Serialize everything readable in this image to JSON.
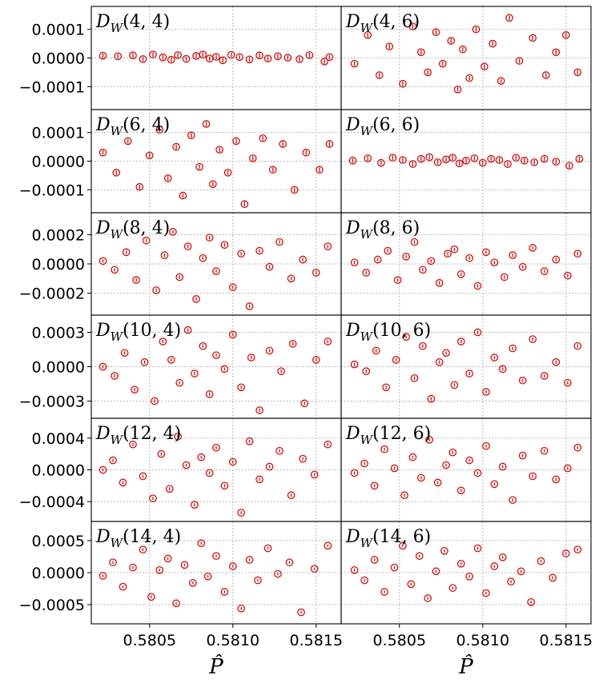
{
  "figure": {
    "x_axis_label": "P̂",
    "marker_color": "#cc1111",
    "grid": "dotted"
  },
  "chart_data": [
    {
      "type": "scatter",
      "title": "D_W(4,4)",
      "title_base": "D",
      "title_sub": "W",
      "title_args": "(4, 4)",
      "xlim": [
        0.58015,
        0.58165
      ],
      "ylim": [
        -0.00018,
        0.00018
      ],
      "yticks": [
        0.0001,
        0.0,
        -0.0001
      ],
      "ytick_labels": [
        "0.0001",
        "0.0000",
        "−0.0001"
      ],
      "xticks": [
        0.5805,
        0.581,
        0.5815
      ],
      "xtick_labels": [
        "",
        "",
        ""
      ],
      "amplitude": 8e-06,
      "x": [
        0.58022,
        0.58031,
        0.5804,
        0.58046,
        0.58052,
        0.58058,
        0.58063,
        0.58067,
        0.58072,
        0.58078,
        0.58082,
        0.58086,
        0.5809,
        0.58094,
        0.58099,
        0.58104,
        0.5811,
        0.58116,
        0.58121,
        0.58127,
        0.58133,
        0.5814,
        0.58146,
        0.58155,
        0.58158
      ],
      "y": [
        8e-06,
        6e-06,
        9e-06,
        -4e-06,
        1.2e-05,
        2e-06,
        -6e-06,
        1e-05,
        -3e-06,
        7e-06,
        1.2e-05,
        -2e-06,
        4e-06,
        -8e-06,
        1.1e-05,
        3e-06,
        -5e-06,
        9e-06,
        -2e-06,
        6e-06,
        1e-06,
        -4e-06,
        1e-05,
        -1.2e-05,
        3e-06
      ]
    },
    {
      "type": "scatter",
      "title": "D_W(4,6)",
      "title_base": "D",
      "title_sub": "W",
      "title_args": "(4, 6)",
      "xlim": [
        0.58015,
        0.58165
      ],
      "ylim": [
        -0.00018,
        0.00018
      ],
      "yticks": [
        0.0001,
        0.0,
        -0.0001
      ],
      "ytick_labels": [
        "",
        "",
        ""
      ],
      "xticks": [
        0.5805,
        0.581,
        0.5815
      ],
      "xtick_labels": [
        "",
        "",
        ""
      ],
      "amplitude": 8e-06,
      "x": [
        0.58023,
        0.58031,
        0.58038,
        0.58044,
        0.58052,
        0.58058,
        0.58063,
        0.58067,
        0.58072,
        0.58076,
        0.58081,
        0.58085,
        0.58088,
        0.58092,
        0.58096,
        0.58101,
        0.58106,
        0.58111,
        0.58116,
        0.58122,
        0.5813,
        0.58138,
        0.58144,
        0.5815,
        0.58157
      ],
      "y": [
        -2e-05,
        8e-05,
        -6e-05,
        4e-05,
        -9e-05,
        0.00011,
        2e-05,
        -5e-05,
        9e-05,
        -2e-05,
        6e-05,
        -0.00011,
        3e-05,
        -7e-05,
        0.0001,
        -3e-05,
        5e-05,
        -8e-05,
        0.00014,
        -1e-05,
        7e-05,
        -6e-05,
        2e-05,
        8e-05,
        -5e-05
      ]
    },
    {
      "type": "scatter",
      "title": "D_W(6,4)",
      "title_base": "D",
      "title_sub": "W",
      "title_args": "(6, 4)",
      "xlim": [
        0.58015,
        0.58165
      ],
      "ylim": [
        -0.00018,
        0.00018
      ],
      "yticks": [
        0.0001,
        0.0,
        -0.0001
      ],
      "ytick_labels": [
        "0.0001",
        "0.0000",
        "−0.0001"
      ],
      "xticks": [
        0.5805,
        0.581,
        0.5815
      ],
      "xtick_labels": [
        "",
        "",
        ""
      ],
      "amplitude": 8e-06,
      "x": [
        0.58022,
        0.5803,
        0.58037,
        0.58044,
        0.5805,
        0.58056,
        0.58061,
        0.58066,
        0.5807,
        0.58075,
        0.5808,
        0.58084,
        0.58088,
        0.58092,
        0.58097,
        0.58102,
        0.58107,
        0.58112,
        0.58118,
        0.58124,
        0.5813,
        0.58137,
        0.58144,
        0.58152,
        0.58158
      ],
      "y": [
        3e-05,
        -4e-05,
        7e-05,
        -9e-05,
        2e-05,
        0.00011,
        -6e-05,
        5e-05,
        -0.00012,
        9e-05,
        -2e-05,
        0.00013,
        -8e-05,
        4e-05,
        -4e-05,
        7e-05,
        -0.00015,
        1e-05,
        8e-05,
        -3e-05,
        6e-05,
        -0.0001,
        3e-05,
        -3e-05,
        6e-05
      ]
    },
    {
      "type": "scatter",
      "title": "D_W(6,6)",
      "title_base": "D",
      "title_sub": "W",
      "title_args": "(6, 6)",
      "xlim": [
        0.58015,
        0.58165
      ],
      "ylim": [
        -0.00018,
        0.00018
      ],
      "yticks": [
        0.0001,
        0.0,
        -0.0001
      ],
      "ytick_labels": [
        "",
        "",
        ""
      ],
      "xticks": [
        0.5805,
        0.581,
        0.5815
      ],
      "xtick_labels": [
        "",
        "",
        ""
      ],
      "amplitude": 8e-06,
      "x": [
        0.58022,
        0.58031,
        0.58039,
        0.58046,
        0.58052,
        0.58058,
        0.58063,
        0.58068,
        0.58073,
        0.58078,
        0.58082,
        0.58086,
        0.5809,
        0.58095,
        0.581,
        0.58105,
        0.5811,
        0.58115,
        0.5812,
        0.58125,
        0.58131,
        0.58137,
        0.58144,
        0.58152,
        0.58158
      ],
      "y": [
        2e-06,
        1e-05,
        -6e-06,
        1.2e-05,
        4e-06,
        -1e-05,
        8e-06,
        1.4e-05,
        -4e-06,
        6e-06,
        1.2e-05,
        -8e-06,
        2e-06,
        1e-05,
        -6e-06,
        8e-06,
        4e-06,
        -1e-05,
        1.2e-05,
        2e-06,
        -4e-06,
        8e-06,
        -2e-06,
        -1.6e-05,
        8e-06
      ]
    },
    {
      "type": "scatter",
      "title": "D_W(8,4)",
      "title_base": "D",
      "title_sub": "W",
      "title_args": "(8, 4)",
      "xlim": [
        0.58015,
        0.58165
      ],
      "ylim": [
        -0.00035,
        0.00035
      ],
      "yticks": [
        0.0002,
        0.0,
        -0.0002
      ],
      "ytick_labels": [
        "0.0002",
        "0.0000",
        "−0.0002"
      ],
      "xticks": [
        0.5805,
        0.581,
        0.5815
      ],
      "xtick_labels": [
        "",
        "",
        ""
      ],
      "amplitude": 1.2e-05,
      "x": [
        0.58022,
        0.58029,
        0.58036,
        0.58042,
        0.58048,
        0.58054,
        0.58059,
        0.58064,
        0.58068,
        0.58073,
        0.58078,
        0.58082,
        0.58086,
        0.5809,
        0.58095,
        0.581,
        0.58105,
        0.5811,
        0.58116,
        0.58122,
        0.58128,
        0.58135,
        0.58142,
        0.5815,
        0.58157
      ],
      "y": [
        2e-05,
        -4e-05,
        8e-05,
        -0.00011,
        0.00016,
        -0.00018,
        6e-05,
        0.00022,
        -9e-05,
        0.00012,
        -0.00024,
        4e-05,
        0.00018,
        -5e-05,
        0.00013,
        -0.00016,
        7e-05,
        -0.00029,
        9e-05,
        -2e-05,
        0.00015,
        -0.0001,
        3e-05,
        -6e-05,
        0.00012
      ]
    },
    {
      "type": "scatter",
      "title": "D_W(8,6)",
      "title_base": "D",
      "title_sub": "W",
      "title_args": "(8, 6)",
      "xlim": [
        0.58015,
        0.58165
      ],
      "ylim": [
        -0.00035,
        0.00035
      ],
      "yticks": [
        0.0002,
        0.0,
        -0.0002
      ],
      "ytick_labels": [
        "",
        "",
        ""
      ],
      "xticks": [
        0.5805,
        0.581,
        0.5815
      ],
      "xtick_labels": [
        "",
        "",
        ""
      ],
      "amplitude": 1.2e-05,
      "x": [
        0.58023,
        0.5803,
        0.58037,
        0.58043,
        0.58049,
        0.58054,
        0.58059,
        0.58064,
        0.58069,
        0.58074,
        0.58079,
        0.58083,
        0.58087,
        0.58092,
        0.58097,
        0.58102,
        0.58107,
        0.58113,
        0.58118,
        0.58124,
        0.5813,
        0.58137,
        0.58144,
        0.58151,
        0.58157
      ],
      "y": [
        1e-05,
        -6e-05,
        3e-05,
        9e-05,
        -0.00011,
        5e-05,
        0.00015,
        -4e-05,
        2e-05,
        -0.00013,
        7e-05,
        0.0001,
        -7e-05,
        4e-05,
        -0.00015,
        8e-05,
        1e-05,
        -9e-05,
        6e-05,
        -2e-05,
        0.00011,
        -5e-05,
        3e-05,
        -8e-05,
        7e-05
      ]
    },
    {
      "type": "scatter",
      "title": "D_W(10,4)",
      "title_base": "D",
      "title_sub": "W",
      "title_args": "(10, 4)",
      "xlim": [
        0.58015,
        0.58165
      ],
      "ylim": [
        -0.00045,
        0.00045
      ],
      "yticks": [
        0.0003,
        0.0,
        -0.0003
      ],
      "ytick_labels": [
        "0.0003",
        "0.0000",
        "−0.0003"
      ],
      "xticks": [
        0.5805,
        0.581,
        0.5815
      ],
      "xtick_labels": [
        "",
        "",
        ""
      ],
      "amplitude": 1.5e-05,
      "x": [
        0.58022,
        0.58029,
        0.58035,
        0.58041,
        0.58047,
        0.58053,
        0.58058,
        0.58063,
        0.58068,
        0.58073,
        0.58077,
        0.58082,
        0.58086,
        0.5809,
        0.58095,
        0.581,
        0.58105,
        0.58111,
        0.58116,
        0.58122,
        0.58129,
        0.58136,
        0.58143,
        0.5815,
        0.58157
      ],
      "y": [
        0.0,
        -8e-05,
        0.00012,
        -0.0002,
        4e-05,
        -0.0003,
        0.00022,
        6e-05,
        -0.00014,
        0.00032,
        -6e-05,
        0.00018,
        -0.00024,
        0.0001,
        -2e-05,
        0.00028,
        -0.00018,
        8e-05,
        -0.00038,
        0.00014,
        -4e-05,
        0.0002,
        -0.00032,
        6e-05,
        0.00022
      ]
    },
    {
      "type": "scatter",
      "title": "D_W(10,6)",
      "title_base": "D",
      "title_sub": "W",
      "title_args": "(10, 6)",
      "xlim": [
        0.58015,
        0.58165
      ],
      "ylim": [
        -0.00045,
        0.00045
      ],
      "yticks": [
        0.0003,
        0.0,
        -0.0003
      ],
      "ytick_labels": [
        "",
        "",
        ""
      ],
      "xticks": [
        0.5805,
        0.581,
        0.5815
      ],
      "xtick_labels": [
        "",
        "",
        ""
      ],
      "amplitude": 1.5e-05,
      "x": [
        0.58023,
        0.5803,
        0.58036,
        0.58042,
        0.58048,
        0.58054,
        0.58059,
        0.58064,
        0.58069,
        0.58074,
        0.58078,
        0.58083,
        0.58087,
        0.58092,
        0.58097,
        0.58102,
        0.58107,
        0.58112,
        0.58118,
        0.58124,
        0.5813,
        0.58137,
        0.58144,
        0.58151,
        0.58157
      ],
      "y": [
        2e-05,
        -4e-05,
        0.00014,
        -0.00018,
        6e-05,
        0.00026,
        -0.0001,
        0.00018,
        -0.00028,
        4e-05,
        0.00012,
        -0.00016,
        0.00022,
        -6e-05,
        0.0003,
        -0.00022,
        8e-05,
        -2e-05,
        0.00016,
        -0.00012,
        0.00024,
        -8e-05,
        4e-05,
        -0.00014,
        0.00018
      ]
    },
    {
      "type": "scatter",
      "title": "D_W(12,4)",
      "title_base": "D",
      "title_sub": "W",
      "title_args": "(12, 4)",
      "xlim": [
        0.58015,
        0.58165
      ],
      "ylim": [
        -0.00065,
        0.00065
      ],
      "yticks": [
        0.0004,
        0.0,
        -0.0004
      ],
      "ytick_labels": [
        "0.0004",
        "0.0000",
        "−0.0004"
      ],
      "xticks": [
        0.5805,
        0.581,
        0.5815
      ],
      "xtick_labels": [
        "",
        "",
        ""
      ],
      "amplitude": 2e-05,
      "x": [
        0.58022,
        0.58028,
        0.58034,
        0.5804,
        0.58046,
        0.58052,
        0.58057,
        0.58062,
        0.58067,
        0.58072,
        0.58077,
        0.58081,
        0.58086,
        0.5809,
        0.58095,
        0.581,
        0.58105,
        0.5811,
        0.58116,
        0.58122,
        0.58128,
        0.58135,
        0.58142,
        0.58149,
        0.58157
      ],
      "y": [
        0.0,
        0.00012,
        -0.00016,
        0.00032,
        -8e-05,
        -0.00036,
        0.0002,
        -0.00024,
        0.00042,
        6e-05,
        -0.00044,
        0.00016,
        -4e-05,
        0.00028,
        -0.0002,
        0.0001,
        -0.00054,
        0.00036,
        -0.00012,
        4e-05,
        0.00024,
        -0.00032,
        0.00014,
        -6e-05,
        0.00032
      ]
    },
    {
      "type": "scatter",
      "title": "D_W(12,6)",
      "title_base": "D",
      "title_sub": "W",
      "title_args": "(12, 6)",
      "xlim": [
        0.58015,
        0.58165
      ],
      "ylim": [
        -0.00065,
        0.00065
      ],
      "yticks": [
        0.0004,
        0.0,
        -0.0004
      ],
      "ytick_labels": [
        "",
        "",
        ""
      ],
      "xticks": [
        0.5805,
        0.581,
        0.5815
      ],
      "xtick_labels": [
        "",
        "",
        ""
      ],
      "amplitude": 2e-05,
      "x": [
        0.58023,
        0.58029,
        0.58035,
        0.58041,
        0.58047,
        0.58053,
        0.58058,
        0.58063,
        0.58068,
        0.58073,
        0.58078,
        0.58082,
        0.58087,
        0.58092,
        0.58097,
        0.58102,
        0.58107,
        0.58112,
        0.58118,
        0.58124,
        0.5813,
        0.58137,
        0.58144,
        0.58151,
        0.58157
      ],
      "y": [
        -4e-05,
        8e-05,
        -0.0002,
        0.00026,
        2e-05,
        -0.00032,
        0.00016,
        -0.0001,
        0.00038,
        -0.00016,
        6e-05,
        0.00022,
        -0.00026,
        0.00012,
        -4e-05,
        0.0003,
        -0.00018,
        4e-05,
        -0.00038,
        0.00018,
        -8e-05,
        0.00024,
        -0.00012,
        2e-05,
        0.00028
      ]
    },
    {
      "type": "scatter",
      "title": "D_W(14,4)",
      "title_base": "D",
      "title_sub": "W",
      "title_args": "(14, 4)",
      "xlim": [
        0.58015,
        0.58165
      ],
      "ylim": [
        -0.0008,
        0.0008
      ],
      "yticks": [
        0.0005,
        0.0,
        -0.0005
      ],
      "ytick_labels": [
        "0.0005",
        "0.0000",
        "−0.0005"
      ],
      "xticks": [
        0.5805,
        0.581,
        0.5815
      ],
      "xtick_labels": [
        "0.5805",
        "0.5810",
        "0.5815"
      ],
      "amplitude": 2.2e-05,
      "x": [
        0.58022,
        0.58028,
        0.58034,
        0.5804,
        0.58046,
        0.58051,
        0.58056,
        0.58061,
        0.58066,
        0.58071,
        0.58076,
        0.58081,
        0.58085,
        0.5809,
        0.58095,
        0.581,
        0.58105,
        0.5811,
        0.58115,
        0.58121,
        0.58127,
        0.58134,
        0.58141,
        0.58149,
        0.58157
      ],
      "y": [
        -5e-05,
        0.00016,
        -0.00022,
        8e-05,
        0.00036,
        -0.00038,
        4e-05,
        0.00022,
        -0.00048,
        0.00012,
        -0.00016,
        0.00046,
        -6e-05,
        0.00026,
        -0.0003,
        0.0001,
        -0.00056,
        0.0002,
        -0.00012,
        0.00038,
        -2e-05,
        0.00016,
        -0.00062,
        6e-05,
        0.00042
      ]
    },
    {
      "type": "scatter",
      "title": "D_W(14,6)",
      "title_base": "D",
      "title_sub": "W",
      "title_args": "(14, 6)",
      "xlim": [
        0.58015,
        0.58165
      ],
      "ylim": [
        -0.0008,
        0.0008
      ],
      "yticks": [
        0.0005,
        0.0,
        -0.0005
      ],
      "ytick_labels": [
        "",
        "",
        ""
      ],
      "xticks": [
        0.5805,
        0.581,
        0.5815
      ],
      "xtick_labels": [
        "0.5805",
        "0.5810",
        "0.5815"
      ],
      "amplitude": 2.2e-05,
      "x": [
        0.58023,
        0.58029,
        0.58035,
        0.58041,
        0.58047,
        0.58052,
        0.58057,
        0.58062,
        0.58067,
        0.58072,
        0.58077,
        0.58082,
        0.58087,
        0.58092,
        0.58097,
        0.58102,
        0.58107,
        0.58112,
        0.58117,
        0.58123,
        0.58129,
        0.58135,
        0.58142,
        0.5815,
        0.58157
      ],
      "y": [
        4e-05,
        -0.00012,
        0.0002,
        -0.0003,
        8e-05,
        0.00042,
        -0.00018,
        0.00026,
        -0.0004,
        2e-05,
        0.00034,
        -0.00024,
        0.00014,
        -6e-05,
        0.00038,
        -0.00032,
        0.0001,
        0.00024,
        -0.00014,
        2e-05,
        -0.00046,
        0.00018,
        -8e-05,
        0.0003,
        0.00036
      ]
    }
  ]
}
